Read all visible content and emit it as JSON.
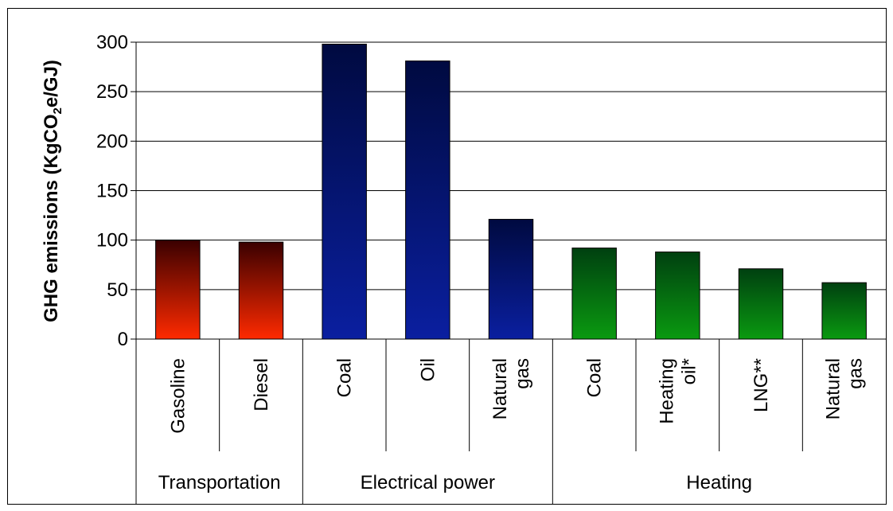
{
  "chart_data": {
    "type": "bar",
    "title": "",
    "ylabel_main": "GHG emissions (KgCO",
    "ylabel_sub": "2",
    "ylabel_tail": "e/GJ)",
    "ylim": [
      0,
      300
    ],
    "yticks": [
      "0",
      "50",
      "100",
      "150",
      "200",
      "250",
      "300"
    ],
    "grid": true,
    "categories": [
      {
        "lines": [
          "Gasoline"
        ],
        "value": 100,
        "group": 0
      },
      {
        "lines": [
          "Diesel"
        ],
        "value": 98,
        "group": 0
      },
      {
        "lines": [
          "Coal"
        ],
        "value": 298,
        "group": 1
      },
      {
        "lines": [
          "Oil"
        ],
        "value": 281,
        "group": 1
      },
      {
        "lines": [
          "Natural",
          "gas"
        ],
        "value": 121,
        "group": 1
      },
      {
        "lines": [
          "Coal"
        ],
        "value": 92,
        "group": 2
      },
      {
        "lines": [
          "Heating",
          "oil*"
        ],
        "value": 88,
        "group": 2
      },
      {
        "lines": [
          "LNG**"
        ],
        "value": 71,
        "group": 2
      },
      {
        "lines": [
          "Natural",
          "gas"
        ],
        "value": 57,
        "group": 2
      }
    ],
    "groups": [
      {
        "name": "Transportation",
        "top_color": "#3a0000",
        "bottom_color": "#ff2a00"
      },
      {
        "name": "Electrical power",
        "top_color": "#000a40",
        "bottom_color": "#0a1fa0"
      },
      {
        "name": "Heating",
        "top_color": "#004010",
        "bottom_color": "#0a9a10"
      }
    ]
  }
}
